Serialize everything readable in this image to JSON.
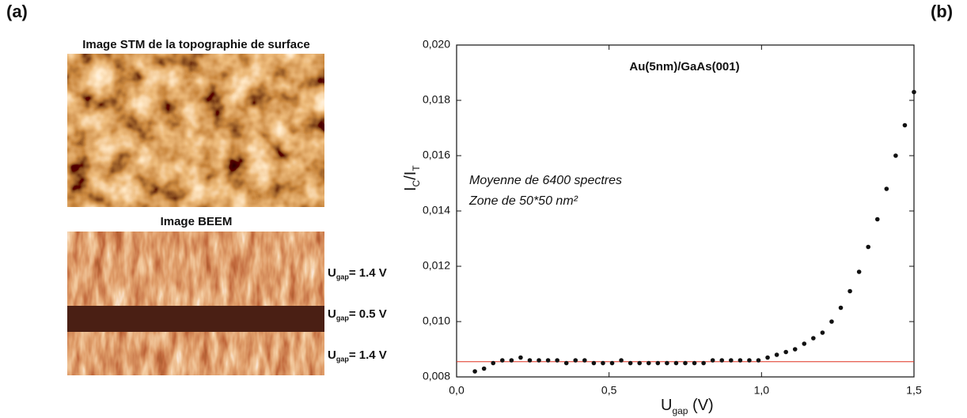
{
  "panel_a": {
    "label": "(a)",
    "stm_title": "Image STM de la topographie de surface",
    "beem_title": "Image BEEM",
    "ugap_labels": [
      [
        "U",
        "gap",
        "= 1.4 V"
      ],
      [
        "U",
        "gap",
        "= 0.5 V"
      ],
      [
        "U",
        "gap",
        "= 1.4 V"
      ]
    ]
  },
  "chart_data": {
    "type": "scatter",
    "panel_label": "(b)",
    "title": "Au(5nm)/GaAs(001)",
    "annotations": [
      "Moyenne de 6400 spectres",
      "Zone de 50*50 nm²"
    ],
    "xlabel_parts": [
      "U",
      "gap",
      " (V)"
    ],
    "ylabel_parts": [
      "I",
      "C",
      "/I",
      "T"
    ],
    "x": [
      0.06,
      0.09,
      0.12,
      0.15,
      0.18,
      0.21,
      0.24,
      0.27,
      0.3,
      0.33,
      0.36,
      0.39,
      0.42,
      0.45,
      0.48,
      0.51,
      0.54,
      0.57,
      0.6,
      0.63,
      0.66,
      0.69,
      0.72,
      0.75,
      0.78,
      0.81,
      0.84,
      0.87,
      0.9,
      0.93,
      0.96,
      0.99,
      1.02,
      1.05,
      1.08,
      1.11,
      1.14,
      1.17,
      1.2,
      1.23,
      1.26,
      1.29,
      1.32,
      1.35,
      1.38,
      1.41,
      1.44,
      1.47,
      1.5
    ],
    "series": [
      {
        "color": "#111111",
        "values": [
          0.0082,
          0.0083,
          0.0085,
          0.0086,
          0.0086,
          0.0087,
          0.0086,
          0.0086,
          0.0086,
          0.0086,
          0.0085,
          0.0086,
          0.0086,
          0.0085,
          0.0085,
          0.0085,
          0.0086,
          0.0085,
          0.0085,
          0.0085,
          0.0085,
          0.0085,
          0.0085,
          0.0085,
          0.0085,
          0.0085,
          0.0086,
          0.0086,
          0.0086,
          0.0086,
          0.0086,
          0.0086,
          0.0087,
          0.0088,
          0.0089,
          0.009,
          0.0092,
          0.0094,
          0.0096,
          0.01,
          0.0105,
          0.0111,
          0.0118,
          0.0127,
          0.0137,
          0.0148,
          0.016,
          0.0171,
          0.0183
        ]
      }
    ],
    "hline": {
      "value": 0.00855,
      "color": "#e03020"
    },
    "xlim": [
      0,
      1.5
    ],
    "ylim": [
      0.008,
      0.02
    ],
    "xticks": [
      {
        "value": 0,
        "label": "0,0"
      },
      {
        "value": 0.5,
        "label": "0,5"
      },
      {
        "value": 1.0,
        "label": "1,0"
      },
      {
        "value": 1.5,
        "label": "1,5"
      }
    ],
    "yticks": [
      {
        "value": 0.008,
        "label": "0,008"
      },
      {
        "value": 0.01,
        "label": "0,010"
      },
      {
        "value": 0.012,
        "label": "0,012"
      },
      {
        "value": 0.014,
        "label": "0,014"
      },
      {
        "value": 0.016,
        "label": "0,016"
      },
      {
        "value": 0.018,
        "label": "0,018"
      },
      {
        "value": 0.02,
        "label": "0,020"
      }
    ]
  }
}
